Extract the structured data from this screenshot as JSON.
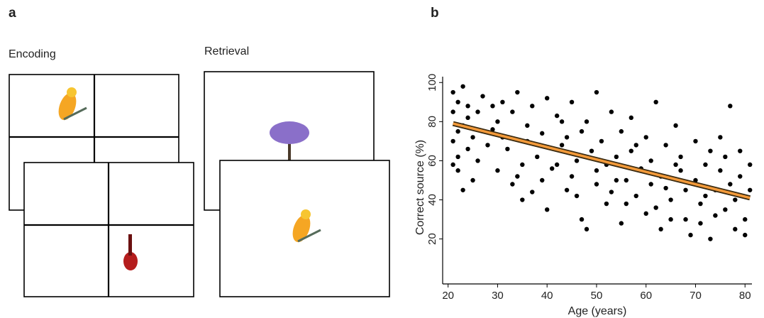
{
  "panel_a": {
    "label": "a",
    "encoding": "Encoding",
    "retrieval": "Retrieval"
  },
  "chart_data": {
    "type": "scatter",
    "panel_label": "b",
    "xlabel": "Age (years)",
    "ylabel": "Correct source (%)",
    "xlim": [
      18.9,
      81.4
    ],
    "ylim": [
      -3,
      103
    ],
    "xticks": [
      20,
      30,
      40,
      50,
      60,
      70,
      80
    ],
    "yticks": [
      20,
      40,
      60,
      80,
      100
    ],
    "color": "#000000",
    "x": [
      21,
      21,
      22,
      22,
      21,
      23,
      22,
      24,
      23,
      25,
      24,
      26,
      22,
      21,
      27,
      25,
      28,
      23,
      26,
      29,
      30,
      31,
      30,
      32,
      33,
      31,
      34,
      35,
      33,
      36,
      35,
      37,
      38,
      36,
      39,
      40,
      39,
      41,
      42,
      40,
      43,
      44,
      45,
      44,
      46,
      47,
      45,
      48,
      49,
      48,
      50,
      50,
      51,
      52,
      53,
      52,
      54,
      55,
      55,
      56,
      57,
      58,
      57,
      59,
      60,
      60,
      61,
      62,
      61,
      63,
      64,
      63,
      65,
      66,
      65,
      67,
      68,
      67,
      69,
      70,
      70,
      71,
      72,
      71,
      73,
      74,
      73,
      75,
      76,
      75,
      77,
      78,
      77,
      79,
      78,
      80,
      79,
      81,
      80,
      81,
      34,
      42,
      47,
      53,
      58,
      62,
      66,
      72,
      76,
      29,
      24,
      37,
      43,
      56,
      68,
      74,
      50,
      46,
      64,
      54
    ],
    "values": [
      85,
      70,
      90,
      62,
      95,
      78,
      55,
      88,
      45,
      72,
      82,
      60,
      75,
      58,
      93,
      50,
      68,
      98,
      85,
      76,
      55,
      90,
      80,
      66,
      48,
      72,
      95,
      58,
      85,
      70,
      40,
      88,
      62,
      78,
      50,
      92,
      74,
      56,
      83,
      35,
      68,
      45,
      90,
      72,
      60,
      30,
      52,
      80,
      65,
      25,
      95,
      48,
      70,
      38,
      85,
      58,
      62,
      28,
      75,
      50,
      82,
      42,
      65,
      56,
      33,
      72,
      48,
      90,
      60,
      25,
      68,
      52,
      40,
      78,
      30,
      55,
      45,
      62,
      22,
      70,
      50,
      38,
      58,
      28,
      65,
      45,
      20,
      55,
      35,
      72,
      48,
      25,
      88,
      52,
      40,
      30,
      65,
      45,
      22,
      58,
      52,
      58,
      75,
      44,
      68,
      36,
      58,
      42,
      62,
      88,
      66,
      44,
      80,
      38,
      30,
      32,
      55,
      42,
      46,
      50
    ],
    "trend_line": {
      "x": [
        21,
        81
      ],
      "y": [
        79,
        41
      ],
      "color": "#f39a3a"
    }
  }
}
